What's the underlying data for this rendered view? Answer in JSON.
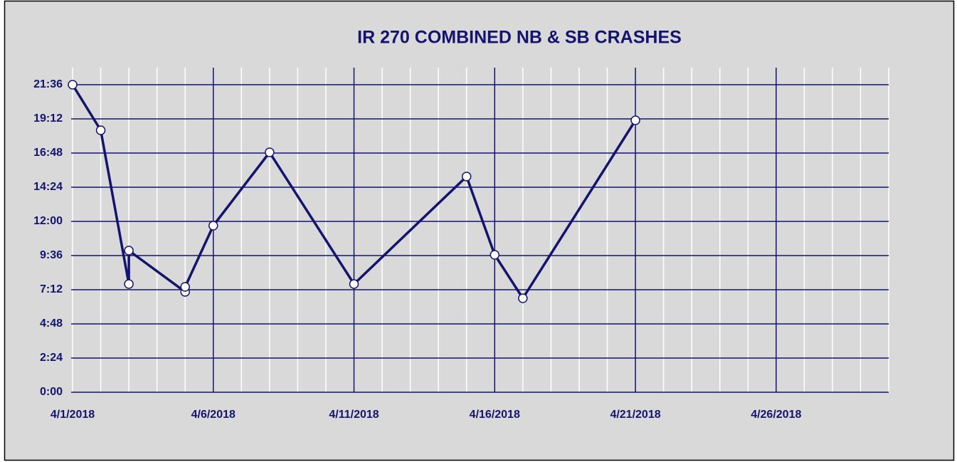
{
  "chart_data": {
    "type": "line",
    "title": "IR 270 COMBINED NB & SB CRASHES",
    "x": [
      "4/1/2018",
      "4/2/2018",
      "4/3/2018",
      "4/3/2018",
      "4/5/2018",
      "4/5/2018",
      "4/6/2018",
      "4/8/2018",
      "4/11/2018",
      "4/15/2018",
      "4/16/2018",
      "4/17/2018",
      "4/21/2018"
    ],
    "series": [
      {
        "name": "Crashes",
        "color": "#14146e",
        "values": [
          21.6,
          18.4,
          7.6,
          9.95,
          7.05,
          7.4,
          11.7,
          16.85,
          7.6,
          15.15,
          9.65,
          6.6,
          19.1
        ]
      }
    ],
    "xlim": [
      "4/1/2018",
      "4/30/2018"
    ],
    "xticks": [
      "4/1/2018",
      "4/6/2018",
      "4/11/2018",
      "4/16/2018",
      "4/21/2018",
      "4/26/2018"
    ],
    "x_minor_ticks": [
      "4/2/2018",
      "4/3/2018",
      "4/4/2018",
      "4/5/2018",
      "4/7/2018",
      "4/8/2018",
      "4/9/2018",
      "4/10/2018",
      "4/12/2018",
      "4/13/2018",
      "4/14/2018",
      "4/15/2018",
      "4/17/2018",
      "4/18/2018",
      "4/19/2018",
      "4/20/2018",
      "4/22/2018",
      "4/23/2018",
      "4/24/2018",
      "4/25/2018",
      "4/27/2018",
      "4/28/2018",
      "4/29/2018",
      "4/30/2018"
    ],
    "ylim": [
      0,
      22.8
    ],
    "yticks": [
      {
        "value": 0,
        "label": "0:00"
      },
      {
        "value": 2.4,
        "label": "2:24"
      },
      {
        "value": 4.8,
        "label": "4:48"
      },
      {
        "value": 7.2,
        "label": "7:12"
      },
      {
        "value": 9.6,
        "label": "9:36"
      },
      {
        "value": 12,
        "label": "12:00"
      },
      {
        "value": 14.4,
        "label": "14:24"
      },
      {
        "value": 16.8,
        "label": "16:48"
      },
      {
        "value": 19.2,
        "label": "19:12"
      },
      {
        "value": 21.6,
        "label": "21:36"
      }
    ],
    "grid": true,
    "minor_grid": true,
    "grid_color": "#14146e",
    "minor_grid_color": "#ffffff",
    "background": "#d9d9d9"
  }
}
